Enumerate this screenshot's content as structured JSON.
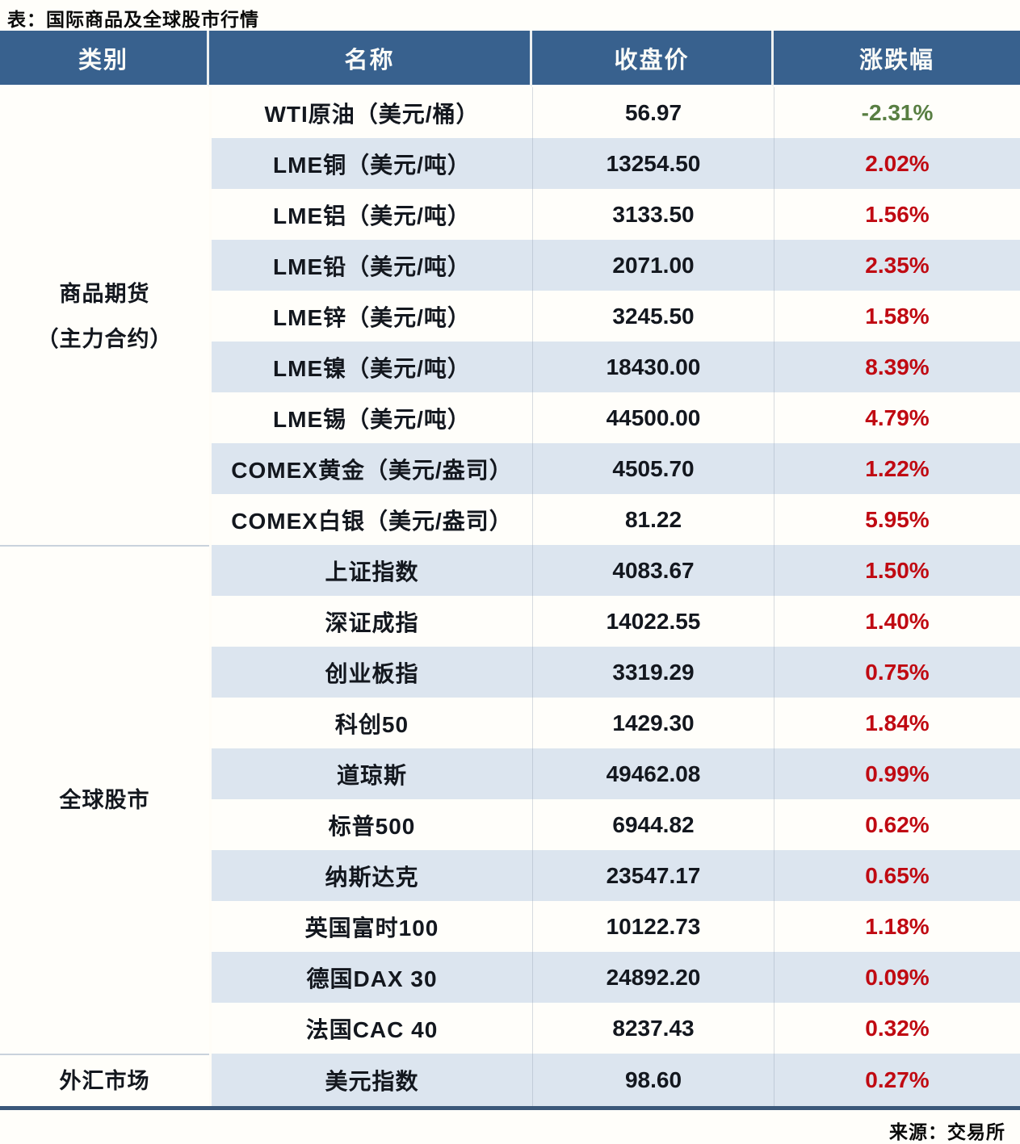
{
  "page": {
    "title": "表：国际商品及全球股市行情",
    "source": "来源：交易所"
  },
  "table": {
    "headers": [
      "类别",
      "名称",
      "收盘价",
      "涨跌幅"
    ],
    "groups": [
      {
        "category": [
          "商品期货",
          "（主力合约）"
        ],
        "rows": [
          {
            "name": "WTI原油（美元/桶）",
            "close": "56.97",
            "change": "-2.31%"
          },
          {
            "name": "LME铜（美元/吨）",
            "close": "13254.50",
            "change": "2.02%"
          },
          {
            "name": "LME铝（美元/吨）",
            "close": "3133.50",
            "change": "1.56%"
          },
          {
            "name": "LME铅（美元/吨）",
            "close": "2071.00",
            "change": "2.35%"
          },
          {
            "name": "LME锌（美元/吨）",
            "close": "3245.50",
            "change": "1.58%"
          },
          {
            "name": "LME镍（美元/吨）",
            "close": "18430.00",
            "change": "8.39%"
          },
          {
            "name": "LME锡（美元/吨）",
            "close": "44500.00",
            "change": "4.79%"
          },
          {
            "name": "COMEX黄金（美元/盎司）",
            "close": "4505.70",
            "change": "1.22%"
          },
          {
            "name": "COMEX白银（美元/盎司）",
            "close": "81.22",
            "change": "5.95%"
          }
        ]
      },
      {
        "category": [
          "全球股市"
        ],
        "rows": [
          {
            "name": "上证指数",
            "close": "4083.67",
            "change": "1.50%"
          },
          {
            "name": "深证成指",
            "close": "14022.55",
            "change": "1.40%"
          },
          {
            "name": "创业板指",
            "close": "3319.29",
            "change": "0.75%"
          },
          {
            "name": "科创50",
            "close": "1429.30",
            "change": "1.84%"
          },
          {
            "name": "道琼斯",
            "close": "49462.08",
            "change": "0.99%"
          },
          {
            "name": "标普500",
            "close": "6944.82",
            "change": "0.62%"
          },
          {
            "name": "纳斯达克",
            "close": "23547.17",
            "change": "0.65%"
          },
          {
            "name": "英国富时100",
            "close": "10122.73",
            "change": "1.18%"
          },
          {
            "name": "德国DAX 30",
            "close": "24892.20",
            "change": "0.09%"
          },
          {
            "name": "法国CAC 40",
            "close": "8237.43",
            "change": "0.32%"
          }
        ]
      },
      {
        "category": [
          "外汇市场"
        ],
        "rows": [
          {
            "name": "美元指数",
            "close": "98.60",
            "change": "0.27%"
          }
        ]
      }
    ]
  },
  "colors": {
    "header_bg": "#38618E",
    "stripe": "#DCE5EF",
    "up_red": "#C00A12",
    "down_green": "#587E42",
    "separator": "#C9D2DC",
    "rule": "#3B587A",
    "page_bg": "#FFFEFA"
  }
}
